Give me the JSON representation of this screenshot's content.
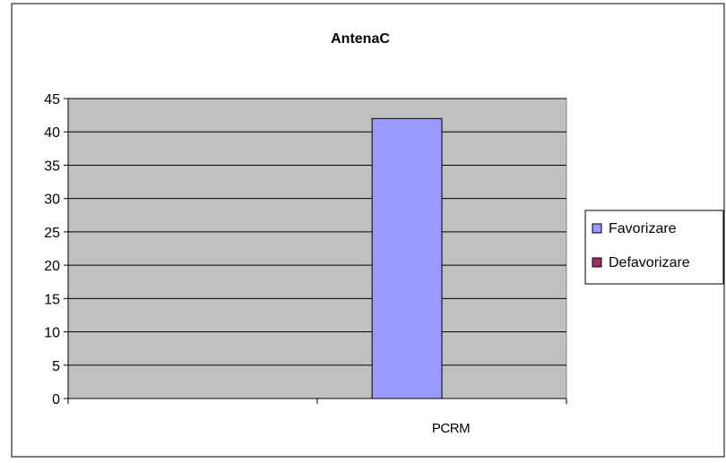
{
  "chart_data": {
    "type": "bar",
    "title": "AntenaC",
    "xlabel": "",
    "ylabel": "",
    "categories": [
      "",
      "PCRM"
    ],
    "series": [
      {
        "name": "Favorizare",
        "values": [
          0,
          42
        ],
        "color": "#9999ff"
      },
      {
        "name": "Defavorizare",
        "values": [
          0,
          0
        ],
        "color": "#993366"
      }
    ],
    "ylim": [
      0,
      45
    ],
    "yticks": [
      0,
      5,
      10,
      15,
      20,
      25,
      30,
      35,
      40,
      45
    ],
    "grid": true,
    "plot_background": "#c0c0c0",
    "legend_position": "right"
  }
}
